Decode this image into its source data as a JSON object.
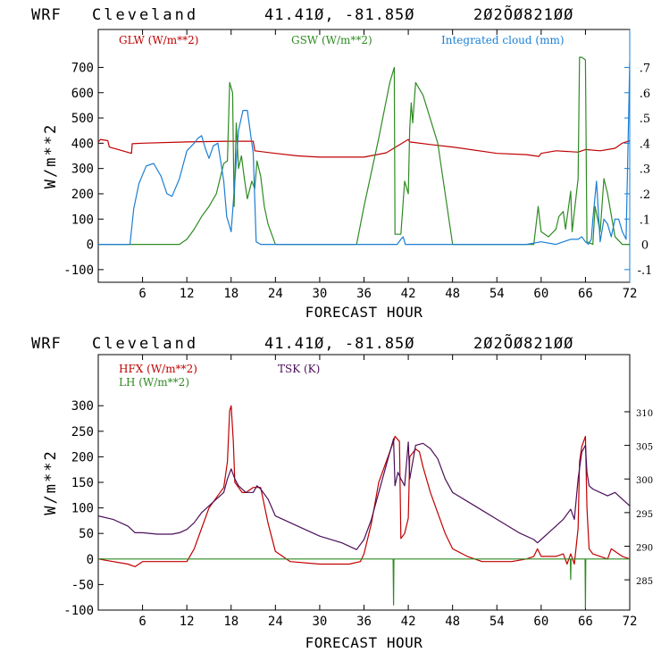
{
  "chart_data": [
    {
      "type": "line",
      "title": {
        "model": "WRF",
        "location": "Cleveland",
        "coords": "41.41Ø, -81.85Ø",
        "init": "2Ø2ÕØ821ØØ"
      },
      "xlabel": "FORECAST HOUR",
      "ylabel": "W/m**2",
      "xlim": [
        0,
        72
      ],
      "ylim": [
        -150,
        850
      ],
      "xticks": [
        6,
        12,
        18,
        24,
        30,
        36,
        42,
        48,
        54,
        60,
        66,
        72
      ],
      "yticks": [
        -100,
        0,
        100,
        200,
        300,
        400,
        500,
        600,
        700
      ],
      "y2lim": [
        -0.15,
        0.85
      ],
      "y2ticks": [
        -0.1,
        0,
        0.1,
        0.2,
        0.3,
        0.4,
        0.5,
        0.6,
        0.7
      ],
      "y2tick_labels": [
        "-.1",
        "0",
        ".1",
        ".2",
        ".3",
        ".4",
        ".5",
        ".6",
        ".7"
      ],
      "legend": [
        {
          "label": "GLW (W/m**2)",
          "color": "#c00000"
        },
        {
          "label": "GSW (W/m**2)",
          "color": "#2e8b22"
        },
        {
          "label": "Integrated cloud (mm)",
          "color": "#1a7fd4"
        }
      ],
      "series": [
        {
          "name": "GLW (W/m**2)",
          "axis": "left",
          "color": "#c00000",
          "x": [
            0,
            0.3,
            1.3,
            1.5,
            4.5,
            4.6,
            6,
            12,
            18,
            21,
            21.2,
            24,
            27,
            30,
            36,
            39,
            42,
            42.2,
            45,
            48,
            54,
            58,
            59.7,
            60,
            62,
            65,
            66,
            68,
            70,
            71,
            72
          ],
          "y": [
            405,
            415,
            410,
            385,
            360,
            398,
            400,
            405,
            408,
            408,
            370,
            360,
            350,
            345,
            345,
            362,
            415,
            405,
            395,
            385,
            360,
            355,
            348,
            360,
            370,
            365,
            375,
            370,
            380,
            400,
            410
          ]
        },
        {
          "name": "GSW (W/m**2)",
          "axis": "left",
          "color": "#2e8b22",
          "x": [
            0,
            11,
            12,
            13,
            14,
            15,
            16,
            17,
            17.5,
            17.8,
            18.2,
            18.4,
            18.7,
            19,
            19.4,
            19.8,
            20.2,
            20.8,
            21.2,
            21.5,
            22,
            22.5,
            23,
            24,
            35,
            36,
            38,
            39.5,
            40.1,
            40.2,
            41,
            41.5,
            42,
            42.2,
            42.4,
            42.6,
            43,
            44,
            46,
            47,
            48,
            58,
            59,
            59.4,
            59.6,
            60,
            61,
            62,
            62.4,
            63,
            63.3,
            64,
            64.2,
            65,
            65.2,
            65.5,
            66,
            66.2,
            67,
            67.3,
            68,
            68.5,
            69,
            70,
            71,
            72
          ],
          "y": [
            0,
            0,
            20,
            60,
            110,
            150,
            200,
            320,
            330,
            640,
            600,
            150,
            480,
            300,
            350,
            260,
            180,
            250,
            220,
            330,
            270,
            150,
            80,
            0,
            0,
            150,
            420,
            640,
            700,
            40,
            40,
            250,
            200,
            460,
            560,
            480,
            640,
            590,
            400,
            200,
            0,
            0,
            0,
            100,
            150,
            50,
            30,
            60,
            110,
            130,
            60,
            210,
            50,
            260,
            740,
            740,
            730,
            10,
            0,
            150,
            50,
            260,
            200,
            30,
            0,
            0
          ]
        },
        {
          "name": "Integrated cloud (mm)",
          "axis": "right",
          "color": "#1a7fd4",
          "x": [
            0,
            4.3,
            4.8,
            5.5,
            6.5,
            7.5,
            8.5,
            9.3,
            10,
            11,
            12,
            13,
            13.5,
            14,
            14.5,
            15,
            15.6,
            16.2,
            17,
            17.4,
            18,
            18.5,
            19,
            19.6,
            20.2,
            21,
            21.4,
            22,
            40.5,
            41,
            41.3,
            41.6,
            58,
            60,
            62,
            64,
            65,
            65.5,
            66,
            66.4,
            66.8,
            67,
            67.5,
            68,
            68.5,
            69,
            69.5,
            70,
            70.5,
            71,
            71.5,
            72
          ],
          "y": [
            0,
            0,
            0.14,
            0.24,
            0.31,
            0.32,
            0.27,
            0.2,
            0.19,
            0.26,
            0.37,
            0.4,
            0.42,
            0.43,
            0.38,
            0.34,
            0.39,
            0.4,
            0.25,
            0.11,
            0.05,
            0.25,
            0.45,
            0.53,
            0.53,
            0.36,
            0.01,
            0,
            0,
            0.02,
            0.03,
            0,
            0,
            0.01,
            0,
            0.02,
            0.02,
            0.03,
            0.01,
            0,
            0.02,
            0.1,
            0.25,
            0.01,
            0.1,
            0.08,
            0.03,
            0.1,
            0.1,
            0.05,
            0.02,
            0.72
          ]
        }
      ]
    },
    {
      "type": "line",
      "title": {
        "model": "WRF",
        "location": "Cleveland",
        "coords": "41.41Ø, -81.85Ø",
        "init": "2Ø2ÕØ821ØØ"
      },
      "xlabel": "FORECAST HOUR",
      "ylabel": "W/m**2",
      "xlim": [
        0,
        72
      ],
      "ylim": [
        -100,
        400
      ],
      "xticks": [
        6,
        12,
        18,
        24,
        30,
        36,
        42,
        48,
        54,
        60,
        66,
        72
      ],
      "yticks": [
        -100,
        -50,
        0,
        50,
        100,
        150,
        200,
        250,
        300
      ],
      "y2lim": [
        280.5,
        318.5
      ],
      "y2ticks": [
        285,
        290,
        295,
        300,
        305,
        310
      ],
      "y2tick_labels": [
        "285",
        "290",
        "295",
        "300",
        "305",
        "310"
      ],
      "legend": [
        {
          "label": "HFX (W/m**2)",
          "color": "#c00000"
        },
        {
          "label": "LH  (W/m**2)",
          "color": "#2e8b22"
        },
        {
          "label": "TSK (K)",
          "color": "#4b0f5a"
        }
      ],
      "series": [
        {
          "name": "HFX (W/m**2)",
          "axis": "left",
          "color": "#c00000",
          "x": [
            0,
            2,
            4,
            5,
            6,
            8,
            10,
            12,
            13,
            14,
            15,
            16,
            17,
            17.5,
            17.8,
            18,
            18.3,
            18.5,
            19,
            19.5,
            20,
            21,
            22,
            23,
            24,
            26,
            30,
            34,
            35.5,
            36,
            37,
            38,
            39,
            40,
            40.2,
            40.8,
            41,
            41.5,
            42,
            42.2,
            43,
            43.5,
            44,
            45,
            46,
            47,
            48,
            50,
            52,
            56,
            58,
            59,
            59.5,
            60,
            61,
            62,
            63,
            63.5,
            64,
            64.5,
            65,
            65.2,
            65.5,
            66,
            66.2,
            66.5,
            67,
            68,
            69,
            69.5,
            70,
            71,
            72
          ],
          "y": [
            0,
            -5,
            -10,
            -15,
            -5,
            -5,
            -5,
            -5,
            20,
            60,
            100,
            120,
            140,
            190,
            290,
            300,
            230,
            150,
            140,
            130,
            130,
            140,
            140,
            70,
            15,
            -5,
            -10,
            -10,
            -5,
            10,
            70,
            150,
            190,
            230,
            240,
            230,
            40,
            50,
            80,
            200,
            215,
            210,
            180,
            130,
            90,
            50,
            20,
            5,
            -5,
            -5,
            0,
            5,
            20,
            5,
            5,
            5,
            10,
            -10,
            10,
            -10,
            60,
            190,
            220,
            240,
            100,
            20,
            10,
            5,
            0,
            20,
            15,
            5,
            0
          ]
        },
        {
          "name": "LH  (W/m**2)",
          "axis": "left",
          "color": "#2e8b22",
          "x": [
            0,
            39.95,
            40,
            40.05,
            63.95,
            64,
            64.05,
            65.95,
            66,
            66.05,
            72
          ],
          "y": [
            0,
            0,
            -90,
            0,
            0,
            -40,
            0,
            0,
            -95,
            0,
            0
          ]
        },
        {
          "name": "TSK (K)",
          "axis": "right",
          "color": "#4b0f5a",
          "x": [
            0,
            2,
            4,
            5,
            6,
            8,
            10,
            11,
            12,
            13,
            14,
            15,
            16,
            17,
            17.5,
            18,
            18.5,
            19,
            20,
            21,
            21.5,
            22,
            23,
            24,
            27,
            30,
            33,
            35,
            36,
            37,
            38,
            39,
            40,
            40.2,
            40.6,
            41,
            41.5,
            42,
            42.2,
            43,
            44,
            45,
            46,
            47,
            48,
            51,
            54,
            57,
            59,
            59.5,
            60,
            61,
            62,
            63,
            64,
            64.5,
            65,
            65.5,
            66,
            66.2,
            66.5,
            67,
            68,
            69,
            70,
            71,
            72
          ],
          "y": [
            294.5,
            294,
            293,
            292,
            292,
            291.8,
            291.8,
            292,
            292.5,
            293.5,
            295,
            296,
            297,
            298,
            300,
            301.5,
            300,
            299,
            298,
            298,
            299,
            298.5,
            297,
            294.5,
            293,
            291.5,
            290.5,
            289.5,
            291,
            294,
            298,
            302,
            306,
            299,
            301,
            300,
            299,
            305.5,
            300,
            305,
            305.3,
            304.5,
            303,
            300,
            298,
            296,
            294,
            292,
            291,
            290.5,
            291,
            292,
            293,
            294,
            295.5,
            294,
            300,
            304,
            305,
            301,
            299,
            298.5,
            298,
            297.5,
            298,
            297,
            296
          ]
        }
      ]
    }
  ]
}
